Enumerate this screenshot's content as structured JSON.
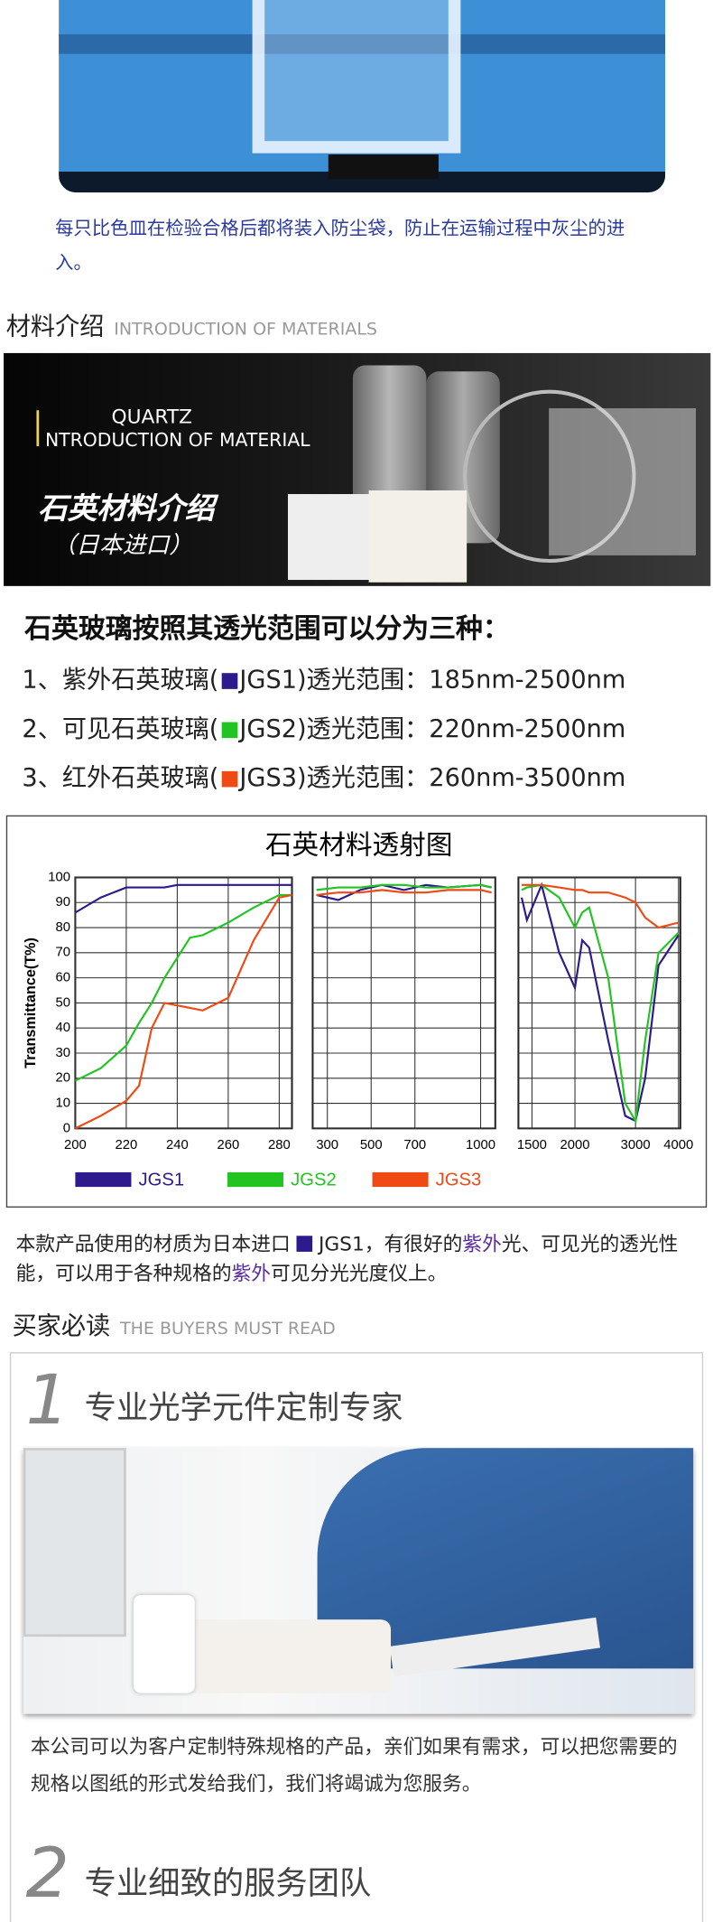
{
  "caption": "每只比色皿在检验合格后都将装入防尘袋，防止在运输过程中灰尘的进入。",
  "materials": {
    "title": "材料介绍",
    "subtitle": "INTRODUCTION OF MATERIALS"
  },
  "banner": {
    "quartz": "QUARTZ",
    "intro_initial": "I",
    "intro_rest": "NTRODUCTION OF MATERIAL",
    "title_cn": "石英材料介绍",
    "origin": "（日本进口）"
  },
  "types": {
    "heading": "石英玻璃按照其透光范围可以分为三种：",
    "items": [
      {
        "before": "1、紫外石英玻璃(",
        "after": "JGS1)透光范围：185nm-2500nm"
      },
      {
        "before": "2、可见石英玻璃(",
        "after": "JGS2)透光范围：220nm-2500nm"
      },
      {
        "before": "3、红外石英玻璃(",
        "after": "JGS3)透光范围：260nm-3500nm"
      }
    ]
  },
  "chart_data": {
    "type": "line",
    "title": "石英材料透射图",
    "y_label": "Transmittance(T%)",
    "ylim": [
      0,
      100
    ],
    "yticks": [
      0,
      10,
      20,
      30,
      40,
      50,
      60,
      70,
      80,
      90,
      100
    ],
    "grid": true,
    "series": [
      {
        "name": "JGS1",
        "color": "#2d1a8c"
      },
      {
        "name": "JGS2",
        "color": "#22c422"
      },
      {
        "name": "JGS3",
        "color": "#f04a14"
      }
    ],
    "panels": [
      {
        "xscale": "linear",
        "xlim": [
          200,
          285
        ],
        "xticks": [
          200,
          220,
          240,
          260,
          280
        ],
        "x": [
          200,
          210,
          220,
          225,
          230,
          235,
          240,
          245,
          250,
          260,
          270,
          280,
          285
        ],
        "series": [
          {
            "values": [
              86,
              92,
              96,
              96,
              96,
              96,
              97,
              97,
              97,
              97,
              97,
              97,
              97
            ]
          },
          {
            "values": [
              19,
              24,
              33,
              42,
              50,
              60,
              68,
              76,
              77,
              82,
              88,
              93,
              93
            ]
          },
          {
            "values": [
              0,
              5,
              11,
              17,
              40,
              50,
              49,
              48,
              47,
              52,
              75,
              92,
              93
            ]
          }
        ]
      },
      {
        "xscale": "linear",
        "xlim": [
          233,
          1067
        ],
        "xticks": [
          300,
          500,
          700,
          1000
        ],
        "x": [
          250,
          350,
          450,
          550,
          650,
          750,
          850,
          1000,
          1050
        ],
        "series": [
          {
            "values": [
              93,
              91,
              95,
              97,
              95,
              97,
              96,
              97,
              96
            ]
          },
          {
            "values": [
              95,
              96,
              96,
              97,
              97,
              96,
              96,
              97,
              96
            ]
          },
          {
            "values": [
              93,
              94,
              94,
              95,
              94,
              94,
              95,
              95,
              94
            ]
          }
        ]
      },
      {
        "xscale": "log",
        "xlim": [
          1370,
          4050
        ],
        "xticks": [
          1500,
          2000,
          3000,
          4000
        ],
        "x": [
          1400,
          1450,
          1600,
          1800,
          2000,
          2100,
          2200,
          2500,
          2800,
          3000,
          3200,
          3500,
          4000
        ],
        "series": [
          {
            "values": [
              92,
              83,
              97,
              70,
              56,
              75,
              72,
              35,
              5,
              3,
              20,
              65,
              77
            ]
          },
          {
            "values": [
              95,
              96,
              97,
              92,
              80,
              86,
              88,
              60,
              10,
              3,
              35,
              70,
              78
            ]
          },
          {
            "values": [
              97,
              97,
              97,
              96,
              95,
              95,
              94,
              94,
              92,
              90,
              84,
              80,
              82
            ]
          }
        ]
      }
    ]
  },
  "paragraph": {
    "before": "本款产品使用的材质为日本进口",
    "jgs": "JGS1，有很好的",
    "uv1": "紫外",
    "mid": "光、可见光的透光性能，可以用于各种规格的",
    "uv2": "紫外",
    "after": "可见分光光度仪上。"
  },
  "buyers": {
    "title": "买家必读",
    "subtitle": "THE BUYERS MUST READ",
    "points": [
      {
        "number": "1",
        "title": "专业光学元件定制专家",
        "text": "本公司可以为客户定制特殊规格的产品，亲们如果有需求，可以把您需要的规格以图纸的形式发给我们，我们将竭诚为您服务。"
      },
      {
        "number": "2",
        "title": "专业细致的服务团队"
      }
    ]
  }
}
